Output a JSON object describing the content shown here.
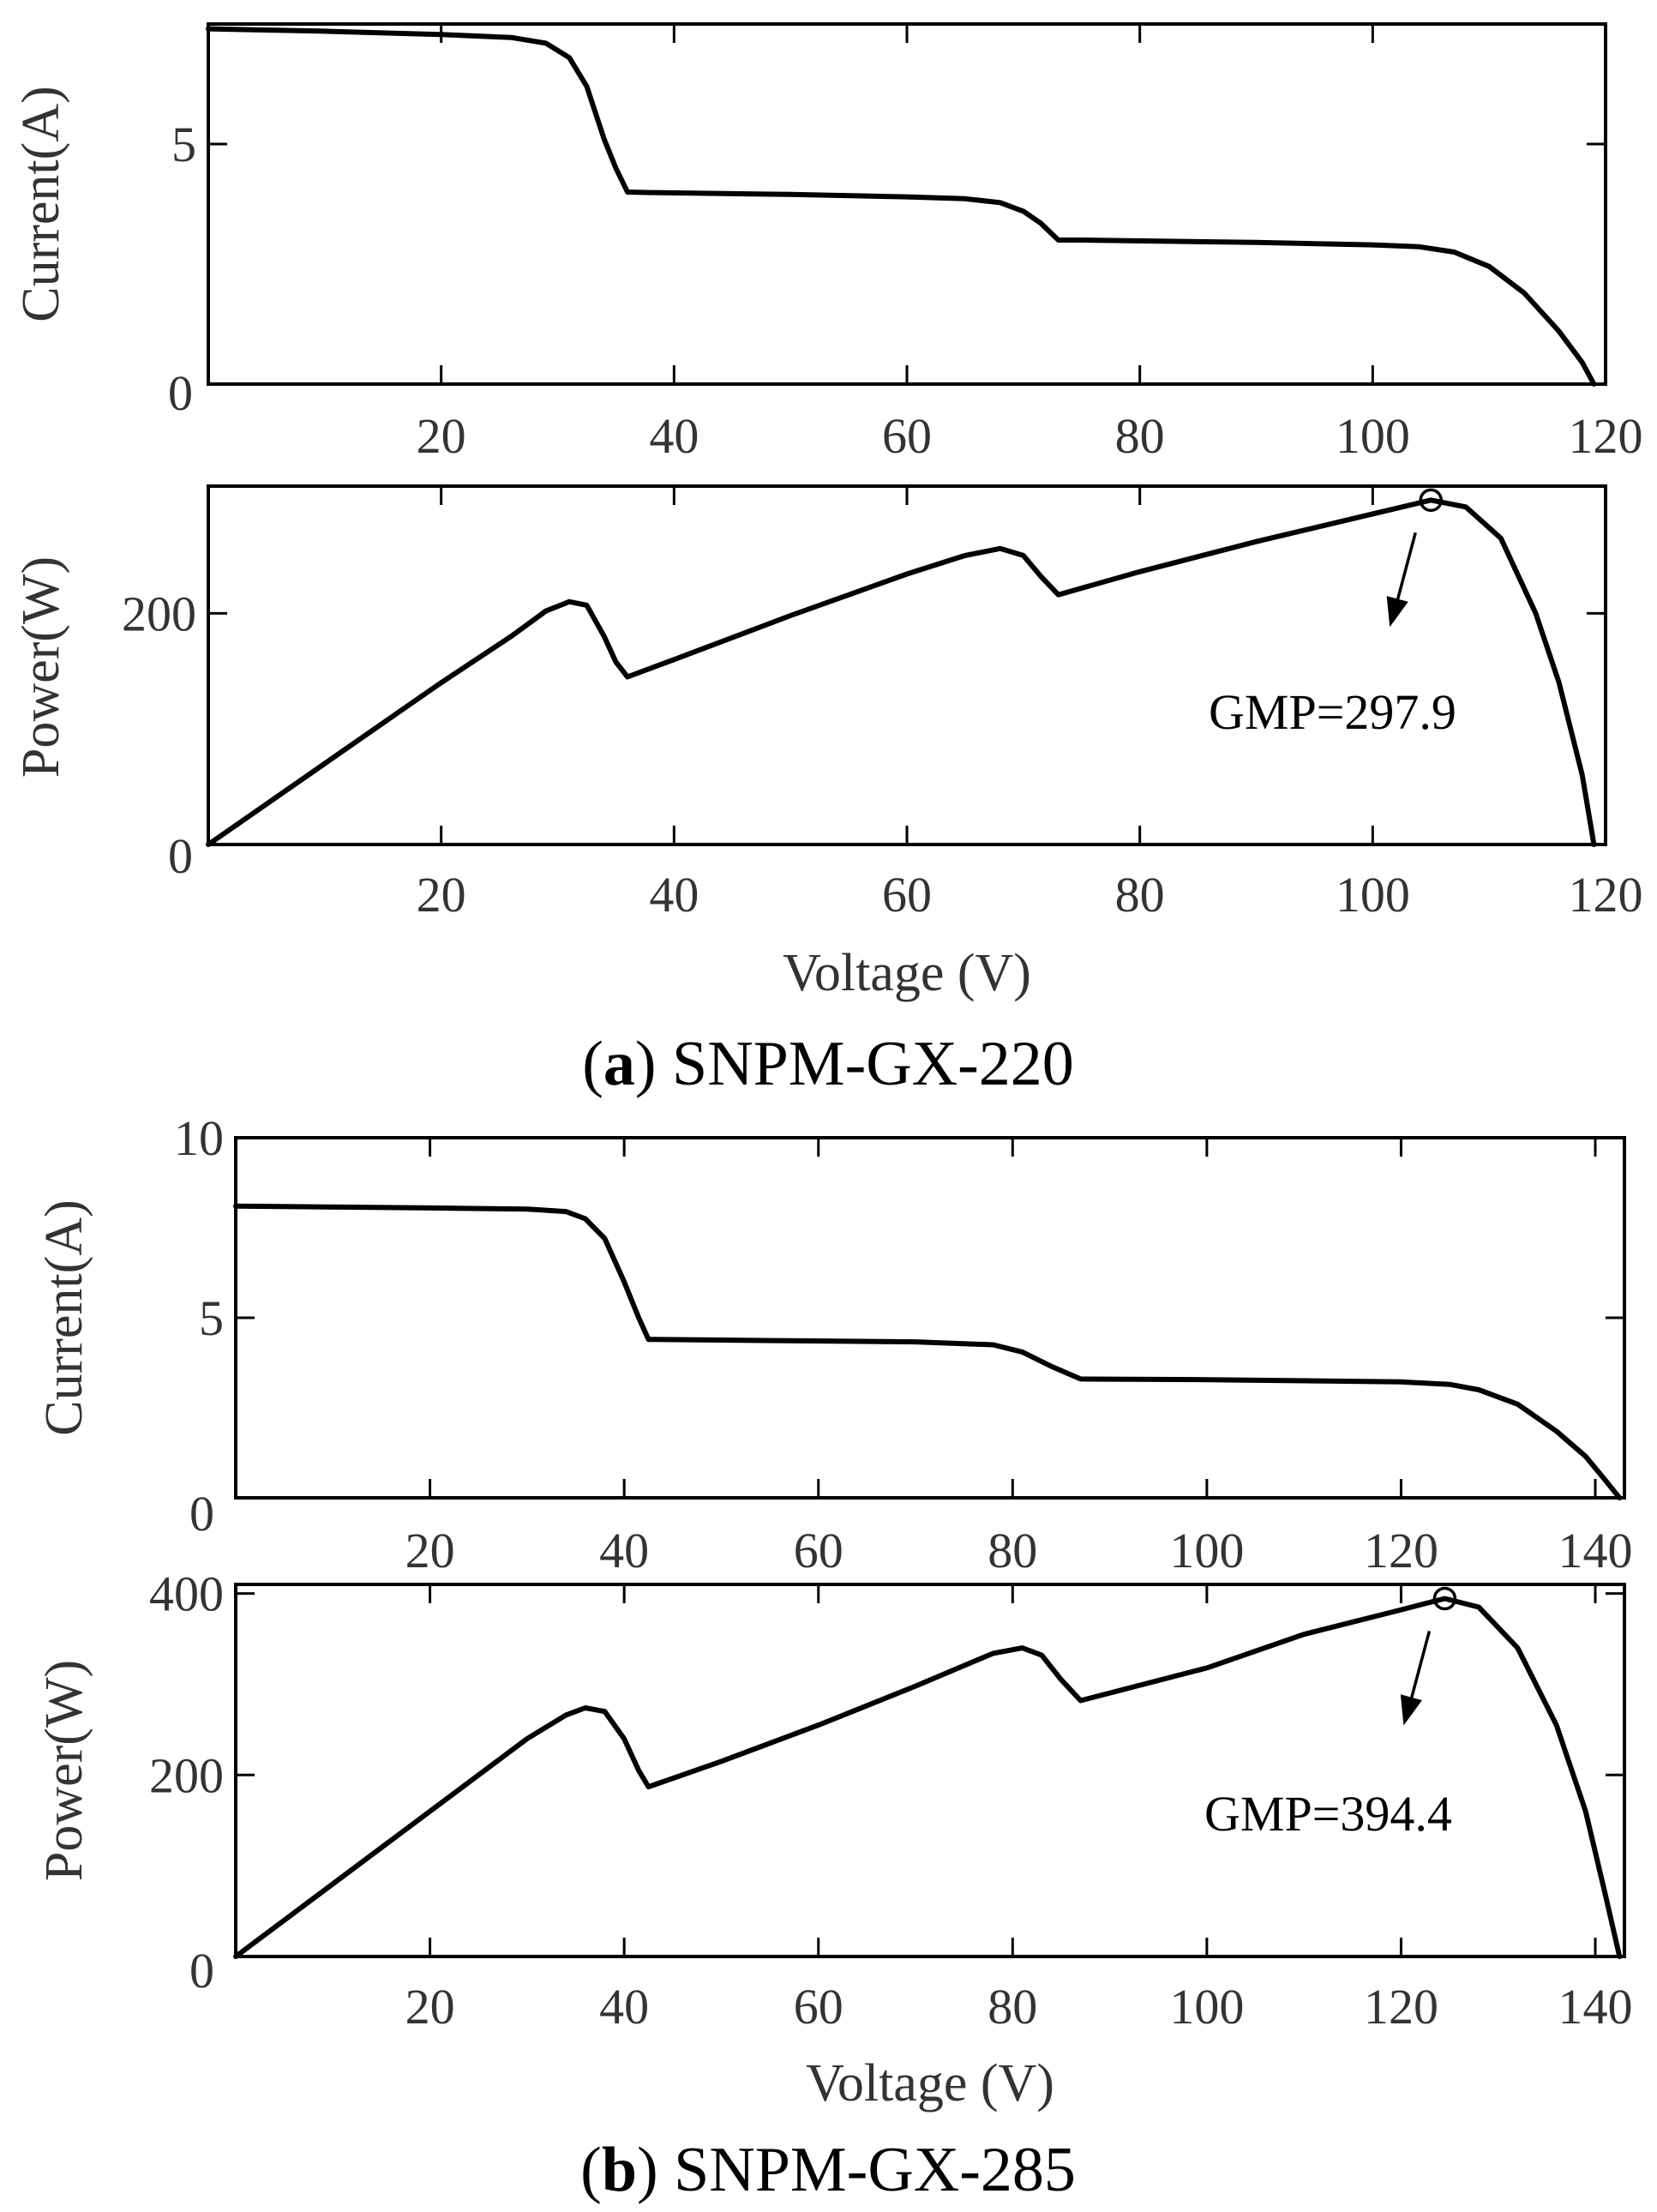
{
  "chart_data": [
    {
      "id": "a_current",
      "type": "line",
      "xlabel": "",
      "ylabel": "Current(A)",
      "xlim": [
        0,
        120
      ],
      "ylim": [
        0,
        7.5
      ],
      "x_ticks": [
        20,
        40,
        60,
        80,
        100,
        120
      ],
      "y_ticks": [
        5
      ],
      "y_zero_label": "0",
      "series": [
        {
          "name": "I-V",
          "x": [
            0,
            10,
            20,
            26,
            29,
            31,
            32.5,
            34,
            35,
            36,
            38,
            50,
            60,
            65,
            68,
            70,
            71.5,
            73,
            75,
            90,
            100,
            104,
            107,
            110,
            113,
            116,
            118,
            119
          ],
          "y": [
            7.4,
            7.35,
            7.28,
            7.22,
            7.1,
            6.8,
            6.2,
            5.1,
            4.5,
            4.0,
            3.99,
            3.95,
            3.9,
            3.86,
            3.78,
            3.6,
            3.35,
            3.0,
            3.0,
            2.95,
            2.9,
            2.86,
            2.75,
            2.45,
            1.9,
            1.1,
            0.45,
            0.0
          ]
        }
      ]
    },
    {
      "id": "a_power",
      "type": "line",
      "xlabel": "Voltage (V)",
      "ylabel": "Power(W)",
      "xlim": [
        0,
        120
      ],
      "ylim": [
        0,
        310
      ],
      "x_ticks": [
        20,
        40,
        60,
        80,
        100,
        120
      ],
      "y_ticks": [
        200
      ],
      "y_zero_label": "0",
      "series": [
        {
          "name": "P-V",
          "x": [
            0,
            10,
            20,
            26,
            29,
            31,
            32.5,
            34,
            35,
            36,
            40,
            50,
            60,
            65,
            68,
            70,
            71.5,
            73,
            80,
            90,
            100,
            105,
            108,
            111,
            114,
            116,
            118,
            119
          ],
          "y": [
            0,
            70,
            140,
            180,
            202,
            210,
            207,
            180,
            158,
            145,
            160,
            198,
            234,
            250,
            256,
            250,
            232,
            216,
            236,
            262,
            286,
            297.9,
            292,
            265,
            200,
            140,
            60,
            0
          ]
        }
      ],
      "annotation": {
        "label": "GMP=297.9",
        "x": 105,
        "y": 297.9
      }
    },
    {
      "id": "b_current",
      "type": "line",
      "xlabel": "",
      "ylabel": "Current(A)",
      "xlim": [
        0,
        143
      ],
      "ylim": [
        0,
        10
      ],
      "x_ticks": [
        20,
        40,
        60,
        80,
        100,
        120,
        140
      ],
      "y_ticks": [
        5,
        10
      ],
      "y_zero_label": "0",
      "series": [
        {
          "name": "I-V",
          "x": [
            0,
            20,
            30,
            34,
            36,
            38,
            40,
            41.5,
            42.5,
            50,
            70,
            78,
            81,
            84,
            87,
            100,
            120,
            125,
            128,
            132,
            136,
            139,
            141,
            142.5
          ],
          "y": [
            8.1,
            8.05,
            8.02,
            7.95,
            7.75,
            7.2,
            6.0,
            5.0,
            4.4,
            4.38,
            4.33,
            4.25,
            4.05,
            3.65,
            3.3,
            3.28,
            3.22,
            3.15,
            3.0,
            2.6,
            1.85,
            1.15,
            0.5,
            0.0
          ]
        }
      ]
    },
    {
      "id": "b_power",
      "type": "line",
      "xlabel": "Voltage (V)",
      "ylabel": "Power(W)",
      "xlim": [
        0,
        143
      ],
      "ylim": [
        0,
        410
      ],
      "x_ticks": [
        20,
        40,
        60,
        80,
        100,
        120,
        140
      ],
      "y_ticks": [
        200,
        400
      ],
      "y_zero_label": "0",
      "series": [
        {
          "name": "P-V",
          "x": [
            0,
            10,
            20,
            30,
            34,
            36,
            38,
            40,
            41.5,
            42.5,
            50,
            60,
            70,
            78,
            81,
            83,
            85,
            87,
            100,
            110,
            120,
            124.5,
            128,
            132,
            136,
            139,
            141,
            142.5
          ],
          "y": [
            0,
            80,
            160,
            240,
            266,
            274,
            270,
            240,
            205,
            187,
            215,
            255,
            298,
            334,
            340,
            332,
            305,
            282,
            318,
            355,
            382,
            394.4,
            385,
            340,
            255,
            160,
            70,
            0
          ]
        }
      ],
      "annotation": {
        "label": "GMP=394.4",
        "x": 124.5,
        "y": 394.4
      }
    }
  ],
  "captions": {
    "a": {
      "letter": "a",
      "model": "SNPM-GX-220"
    },
    "b": {
      "letter": "b",
      "model": "SNPM-GX-285"
    }
  }
}
